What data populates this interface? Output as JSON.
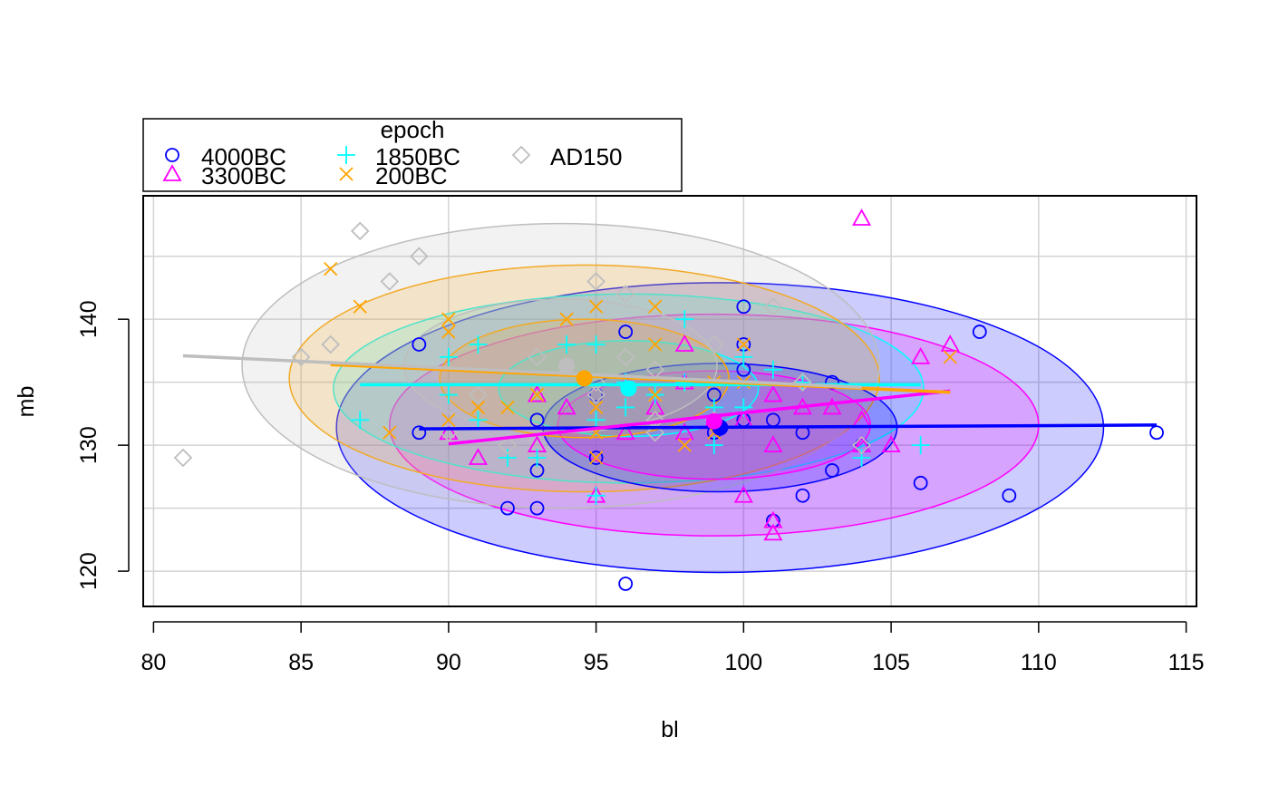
{
  "chart_data": {
    "type": "scatter",
    "xlabel": "bl",
    "ylabel": "mb",
    "xlim": [
      79.65,
      115.35
    ],
    "ylim": [
      117.2,
      149.8
    ],
    "x_ticks": [
      80,
      85,
      90,
      95,
      100,
      105,
      110,
      115
    ],
    "y_ticks": [
      120,
      130,
      140
    ],
    "y_gridlines": [
      120,
      125,
      130,
      135,
      140,
      145
    ],
    "grid": true,
    "legend": {
      "title": "epoch",
      "placement": "top-left, above plot",
      "entries": [
        "4000BC",
        "3300BC",
        "1850BC",
        "200BC",
        "AD150"
      ]
    },
    "series": [
      {
        "name": "4000BC",
        "color": "#0000ff",
        "marker": "circle",
        "points": [
          [
            89,
            138
          ],
          [
            89,
            131
          ],
          [
            92,
            125
          ],
          [
            93,
            125
          ],
          [
            93,
            128
          ],
          [
            93,
            132
          ],
          [
            95,
            129
          ],
          [
            95,
            134
          ],
          [
            96,
            119
          ],
          [
            96,
            139
          ],
          [
            99,
            131
          ],
          [
            99,
            134
          ],
          [
            100,
            141
          ],
          [
            100,
            138
          ],
          [
            100,
            136
          ],
          [
            100,
            132
          ],
          [
            101,
            124
          ],
          [
            101,
            132
          ],
          [
            102,
            131
          ],
          [
            102,
            126
          ],
          [
            103,
            135
          ],
          [
            103,
            128
          ],
          [
            104,
            130
          ],
          [
            106,
            127
          ],
          [
            108,
            139
          ],
          [
            109,
            126
          ],
          [
            114,
            131
          ]
        ],
        "fit_line": {
          "x": [
            89,
            114
          ],
          "y": [
            131.3,
            131.6
          ]
        },
        "centroid": [
          99.2,
          131.4
        ],
        "ellipse_inner": {
          "center": [
            99.2,
            131.4
          ],
          "rx": 6.0,
          "ry": 5.1
        },
        "ellipse_outer": {
          "center": [
            99.2,
            131.4
          ],
          "rx": 13.0,
          "ry": 11.5
        }
      },
      {
        "name": "3300BC",
        "color": "#ff00ff",
        "marker": "triangle",
        "points": [
          [
            90,
            131
          ],
          [
            91,
            129
          ],
          [
            93,
            134
          ],
          [
            93,
            130
          ],
          [
            94,
            133
          ],
          [
            95,
            126
          ],
          [
            96,
            131
          ],
          [
            97,
            133
          ],
          [
            98,
            138
          ],
          [
            98,
            131
          ],
          [
            98,
            135
          ],
          [
            99,
            132
          ],
          [
            100,
            126
          ],
          [
            100,
            132
          ],
          [
            101,
            134
          ],
          [
            101,
            130
          ],
          [
            101,
            123
          ],
          [
            101,
            124
          ],
          [
            102,
            133
          ],
          [
            103,
            133
          ],
          [
            104,
            148
          ],
          [
            104,
            132
          ],
          [
            104,
            130
          ],
          [
            105,
            130
          ],
          [
            106,
            137
          ],
          [
            107,
            138
          ]
        ],
        "fit_line": {
          "x": [
            90,
            107
          ],
          "y": [
            130.1,
            134.3
          ]
        },
        "centroid": [
          99.0,
          131.9
        ],
        "ellipse_inner": {
          "center": [
            99.0,
            131.6
          ],
          "rx": 5.3,
          "ry": 4.3
        },
        "ellipse_outer": {
          "center": [
            99.0,
            131.6
          ],
          "rx": 11.0,
          "ry": 8.8
        }
      },
      {
        "name": "1850BC",
        "color": "#00ffff",
        "marker": "plus",
        "points": [
          [
            87,
            132
          ],
          [
            90,
            137
          ],
          [
            90,
            134
          ],
          [
            91,
            138
          ],
          [
            91,
            132
          ],
          [
            92,
            129
          ],
          [
            93,
            129
          ],
          [
            94,
            138
          ],
          [
            95,
            138
          ],
          [
            95,
            132
          ],
          [
            96,
            133
          ],
          [
            96,
            135
          ],
          [
            97,
            134
          ],
          [
            98,
            140
          ],
          [
            98,
            135
          ],
          [
            99,
            130
          ],
          [
            99,
            133
          ],
          [
            100,
            137
          ],
          [
            100,
            133
          ],
          [
            101,
            136
          ],
          [
            102,
            135
          ],
          [
            104,
            129
          ],
          [
            106,
            130
          ],
          [
            95,
            126
          ]
        ],
        "fit_line": {
          "x": [
            87,
            106
          ],
          "y": [
            134.8,
            134.8
          ]
        },
        "centroid": [
          96.1,
          134.5
        ],
        "ellipse_inner": {
          "center": [
            96.1,
            134.5
          ],
          "rx": 4.4,
          "ry": 3.8
        },
        "ellipse_outer": {
          "center": [
            96.1,
            134.5
          ],
          "rx": 10.0,
          "ry": 7.5
        }
      },
      {
        "name": "200BC",
        "color": "#ffa500",
        "marker": "cross",
        "points": [
          [
            86,
            144
          ],
          [
            87,
            141
          ],
          [
            88,
            131
          ],
          [
            90,
            140
          ],
          [
            90,
            139
          ],
          [
            90,
            132
          ],
          [
            91,
            133
          ],
          [
            92,
            133
          ],
          [
            93,
            134
          ],
          [
            94,
            140
          ],
          [
            95,
            141
          ],
          [
            95,
            133
          ],
          [
            95,
            131
          ],
          [
            95,
            129
          ],
          [
            97,
            141
          ],
          [
            97,
            138
          ],
          [
            97,
            134
          ],
          [
            98,
            130
          ],
          [
            99,
            135
          ],
          [
            99,
            131
          ],
          [
            100,
            138
          ],
          [
            100,
            135
          ],
          [
            107,
            137
          ]
        ],
        "fit_line": {
          "x": [
            86,
            107
          ],
          "y": [
            136.4,
            134.2
          ]
        },
        "centroid": [
          94.6,
          135.3
        ],
        "ellipse_inner": {
          "center": [
            94.6,
            135.3
          ],
          "rx": 4.9,
          "ry": 4.7
        },
        "ellipse_outer": {
          "center": [
            94.6,
            135.3
          ],
          "rx": 10.0,
          "ry": 9.0
        }
      },
      {
        "name": "AD150",
        "color": "#bebebe",
        "marker": "diamond",
        "points": [
          [
            81,
            129
          ],
          [
            85,
            137
          ],
          [
            86,
            138
          ],
          [
            87,
            147
          ],
          [
            88,
            143
          ],
          [
            89,
            145
          ],
          [
            90,
            131
          ],
          [
            91,
            134
          ],
          [
            92,
            130
          ],
          [
            93,
            137
          ],
          [
            95,
            143
          ],
          [
            95,
            135
          ],
          [
            95,
            134
          ],
          [
            96,
            142
          ],
          [
            96,
            137
          ],
          [
            97,
            136
          ],
          [
            97,
            132
          ],
          [
            97,
            131
          ],
          [
            99,
            138
          ],
          [
            99,
            132
          ],
          [
            101,
            141
          ],
          [
            102,
            135
          ],
          [
            104,
            130
          ]
        ],
        "fit_line": {
          "x": [
            81,
            104
          ],
          "y": [
            137.1,
            134.6
          ]
        },
        "centroid": [
          94.0,
          136.3
        ],
        "ellipse_inner": {
          "center": [
            93.8,
            136.3
          ],
          "rx": 5.3,
          "ry": 5.3
        },
        "ellipse_outer": {
          "center": [
            93.8,
            136.3
          ],
          "rx": 10.8,
          "ry": 11.3
        }
      }
    ]
  }
}
